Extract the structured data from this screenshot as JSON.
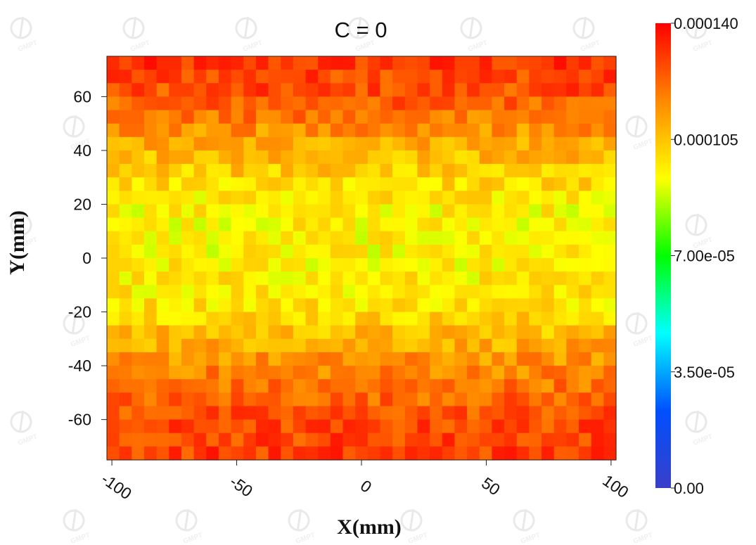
{
  "chart_data": {
    "type": "heatmap",
    "title": "C = 0",
    "xlabel": "X(mm)",
    "ylabel": "Y(mm)",
    "xlim": [
      -102,
      102
    ],
    "ylim": [
      -75,
      75
    ],
    "xticks": [
      -100,
      -50,
      0,
      50,
      100
    ],
    "xtick_labels": [
      "-100",
      "-50",
      "0",
      "50",
      "100"
    ],
    "yticks": [
      60,
      40,
      20,
      0,
      -20,
      -40,
      -60
    ],
    "ytick_labels": [
      "60",
      "40",
      "20",
      "0",
      "-20",
      "-40",
      "-60"
    ],
    "grid": false,
    "colorbar": {
      "min": 0.0,
      "max": 0.00014,
      "ticks": [
        0.00014,
        0.000105,
        7e-05,
        3.5e-05,
        0.0
      ],
      "tick_labels": [
        "0.000140",
        "0.000105",
        "7.00e-05",
        "3.50e-05",
        "0.00"
      ],
      "colormap": [
        "#3a3fc8",
        "#0050ff",
        "#00ffff",
        "#00ff00",
        "#ffff00",
        "#ff8800",
        "#ff0000"
      ]
    },
    "cells": {
      "nx": 41,
      "ny": 30
    },
    "z_profile": {
      "y": [
        -75,
        -60,
        -40,
        -20,
        0,
        20,
        40,
        60,
        75
      ],
      "z": [
        0.00013,
        0.000127,
        0.000116,
        0.0001,
        9.5e-05,
        9.6e-05,
        0.000108,
        0.000126,
        0.000131
      ]
    },
    "watermark": "GMPT"
  }
}
